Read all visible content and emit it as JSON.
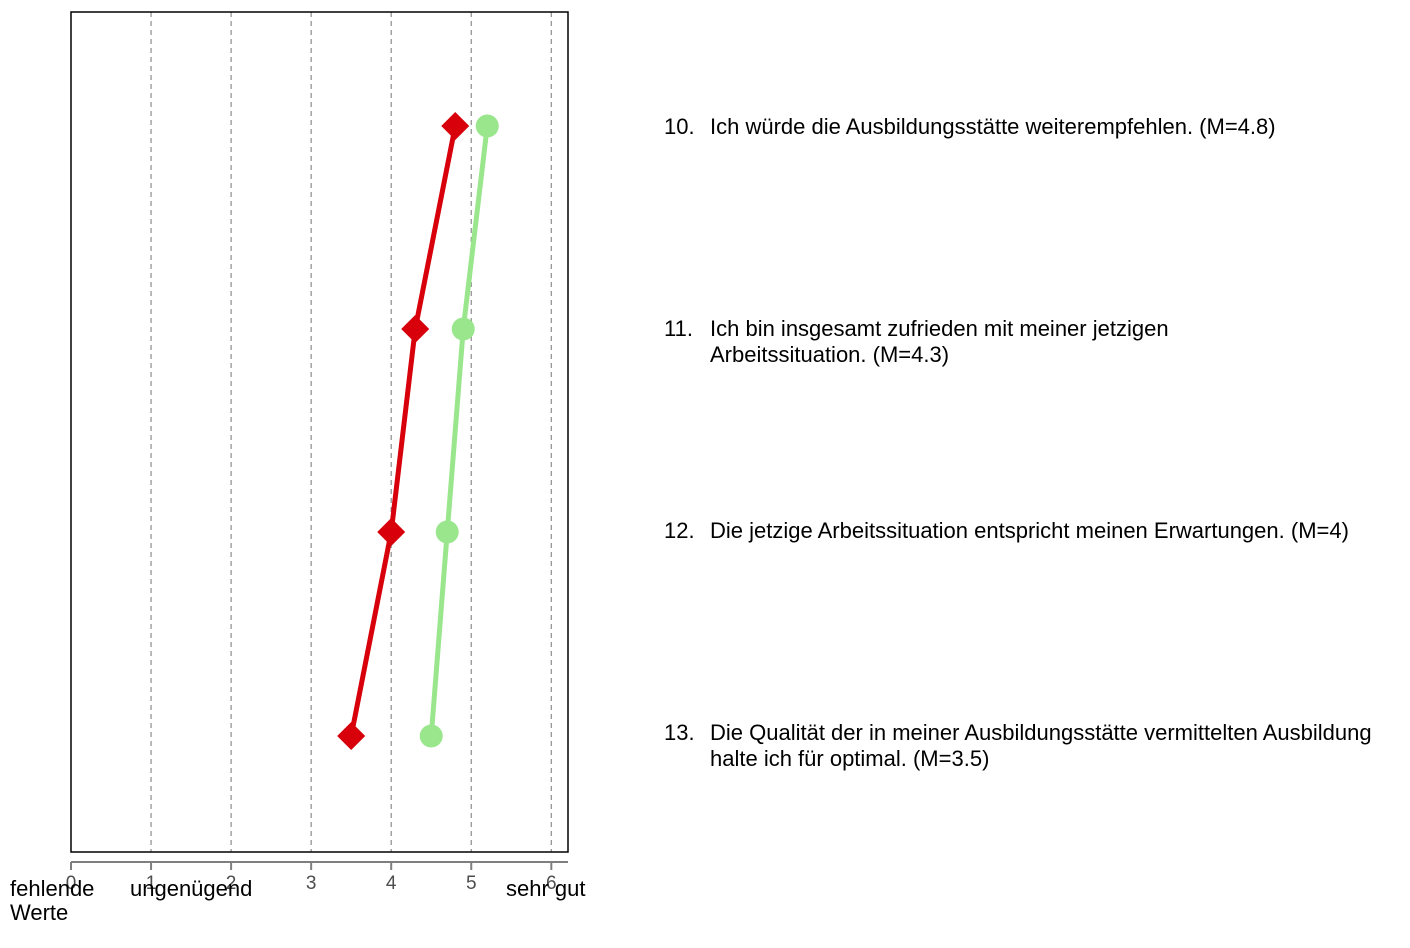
{
  "chart_data": {
    "type": "line",
    "xlim": [
      0,
      6.2
    ],
    "x_ticks": [
      "0",
      "1",
      "2",
      "3",
      "4",
      "5",
      "6"
    ],
    "x_tick_values": [
      0,
      1,
      2,
      3,
      4,
      5,
      6
    ],
    "grid": "vertical-dashed",
    "scale_labels": {
      "low_missing": "fehlende Werte",
      "low": "ungenügend",
      "high": "sehr gut"
    },
    "items": [
      {
        "number": "10.",
        "text": "Ich würde die Ausbildungsstätte weiterempfehlen. (M=4.8)"
      },
      {
        "number": "11.",
        "text": "Ich bin insgesamt zufrieden mit meiner jetzigen Arbeitssituation. (M=4.3)"
      },
      {
        "number": "12.",
        "text": "Die jetzige Arbeitssituation entspricht meinen Erwartungen. (M=4)"
      },
      {
        "number": "13.",
        "text": "Die Qualität der in meiner Ausbildungsstätte vermittelten Ausbildung halte ich für optimal. (M=3.5)"
      }
    ],
    "series": [
      {
        "marker": "diamond",
        "color": "#d7000b",
        "values": [
          4.8,
          4.3,
          4.0,
          3.5
        ]
      },
      {
        "marker": "circle",
        "color": "#99e68c",
        "values": [
          5.2,
          4.9,
          4.7,
          4.5
        ]
      }
    ]
  }
}
